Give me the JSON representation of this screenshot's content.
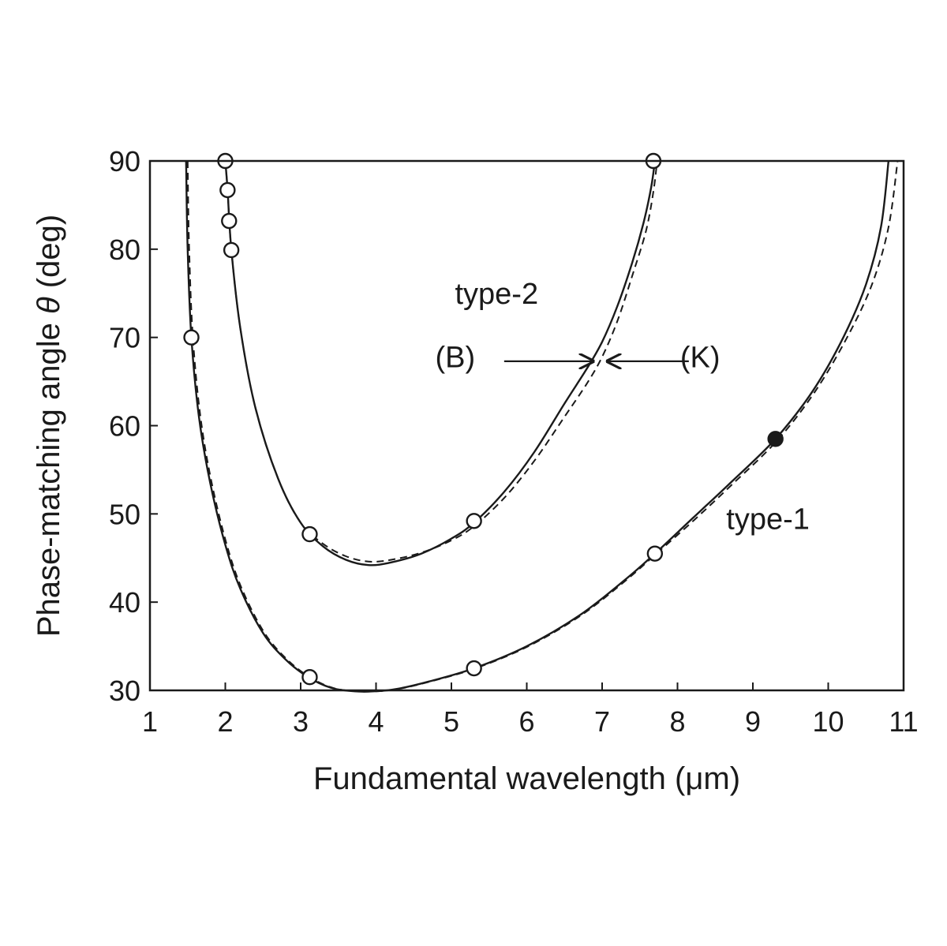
{
  "chart_data": {
    "type": "line",
    "xlabel": "Fundamental wavelength (μm)",
    "ylabel_prefix": "Phase-matching angle ",
    "ylabel_symbol": "θ",
    "ylabel_suffix": " (deg)",
    "xlim": [
      1,
      11
    ],
    "ylim": [
      30,
      90
    ],
    "xticks": [
      1,
      2,
      3,
      4,
      5,
      6,
      7,
      8,
      9,
      10,
      11
    ],
    "yticks": [
      30,
      40,
      50,
      60,
      70,
      80,
      90
    ],
    "grid": false,
    "series": [
      {
        "name": "type-1",
        "style": "solid",
        "x": [
          1.48,
          1.5,
          1.55,
          1.65,
          1.8,
          2.0,
          2.2,
          2.5,
          2.8,
          3.1,
          3.4,
          3.7,
          4.0,
          4.3,
          4.7,
          5.3,
          6.0,
          6.7,
          7.3,
          7.7,
          8.2,
          8.7,
          9.3,
          9.8,
          10.2,
          10.5,
          10.7,
          10.8
        ],
        "y": [
          90,
          80,
          70,
          61,
          53.5,
          46.5,
          41.5,
          36.5,
          33.5,
          31.5,
          30.3,
          29.9,
          29.9,
          30.2,
          31.0,
          32.5,
          35.0,
          38.5,
          42.5,
          45.5,
          49.5,
          53.5,
          58.5,
          64.0,
          70.0,
          76.0,
          82.5,
          90
        ]
      },
      {
        "name": "type-1",
        "style": "dashed",
        "x": [
          1.5,
          1.52,
          1.57,
          1.67,
          1.82,
          2.02,
          2.22,
          2.52,
          2.82,
          3.12,
          3.42,
          3.72,
          4.02,
          4.32,
          4.72,
          5.32,
          6.02,
          6.72,
          7.32,
          7.72,
          8.22,
          8.72,
          9.32,
          9.82,
          10.25,
          10.58,
          10.8,
          10.92
        ],
        "y": [
          90,
          80,
          70,
          61,
          53.5,
          46.5,
          41.5,
          36.5,
          33.5,
          31.5,
          30.3,
          29.9,
          29.9,
          30.2,
          31.0,
          32.5,
          35.0,
          38.5,
          42.5,
          45.5,
          49.3,
          53.3,
          58.3,
          63.8,
          70.0,
          76.0,
          82.5,
          90
        ]
      },
      {
        "name": "type-2",
        "style": "solid",
        "x": [
          2.0,
          2.03,
          2.08,
          2.2,
          2.4,
          2.7,
          3.0,
          3.3,
          3.6,
          3.9,
          4.2,
          4.6,
          5.0,
          5.3,
          5.7,
          6.1,
          6.5,
          6.8,
          7.0,
          7.2,
          7.4,
          7.55,
          7.65,
          7.7
        ],
        "y": [
          90,
          86.7,
          80,
          71.0,
          62.0,
          54.0,
          49.0,
          46.3,
          44.8,
          44.2,
          44.5,
          45.5,
          47.2,
          49.0,
          52.5,
          57.0,
          62.5,
          66.5,
          69.5,
          73.5,
          78.5,
          83.0,
          87.0,
          90
        ]
      },
      {
        "name": "type-2",
        "style": "dashed",
        "x": [
          2.0,
          2.03,
          2.08,
          2.2,
          2.4,
          2.7,
          3.0,
          3.3,
          3.6,
          3.9,
          4.2,
          4.6,
          5.0,
          5.3,
          5.7,
          6.1,
          6.5,
          6.8,
          7.0,
          7.2,
          7.4,
          7.58,
          7.68,
          7.73
        ],
        "y": [
          90,
          86.7,
          80,
          71.0,
          62.0,
          54.0,
          49.0,
          46.6,
          45.2,
          44.6,
          44.8,
          45.6,
          47.0,
          48.6,
          51.8,
          56.0,
          61.0,
          64.8,
          67.8,
          71.8,
          77.0,
          82.0,
          86.5,
          90
        ]
      }
    ],
    "markers": [
      {
        "x": 1.55,
        "y": 70,
        "fill": "open"
      },
      {
        "x": 3.12,
        "y": 31.5,
        "fill": "open"
      },
      {
        "x": 5.3,
        "y": 32.5,
        "fill": "open"
      },
      {
        "x": 7.7,
        "y": 45.5,
        "fill": "open"
      },
      {
        "x": 9.3,
        "y": 58.5,
        "fill": "filled"
      },
      {
        "x": 2.0,
        "y": 90,
        "fill": "open"
      },
      {
        "x": 2.03,
        "y": 86.7,
        "fill": "open"
      },
      {
        "x": 2.05,
        "y": 83.2,
        "fill": "open"
      },
      {
        "x": 2.08,
        "y": 79.9,
        "fill": "open"
      },
      {
        "x": 3.12,
        "y": 47.7,
        "fill": "open"
      },
      {
        "x": 5.3,
        "y": 49.2,
        "fill": "open"
      },
      {
        "x": 7.68,
        "y": 90,
        "fill": "open"
      }
    ],
    "annotations": [
      {
        "text": "type-2",
        "x": 5.6,
        "y": 73.8
      },
      {
        "text": "type-1",
        "x": 9.2,
        "y": 48.3
      },
      {
        "text": "(B)",
        "x": 5.05,
        "y": 66.6
      },
      {
        "text": "(K)",
        "x": 8.3,
        "y": 66.6
      }
    ],
    "arrows": [
      {
        "from": [
          5.7,
          67.3
        ],
        "to": [
          6.9,
          67.3
        ]
      },
      {
        "from": [
          8.15,
          67.3
        ],
        "to": [
          7.05,
          67.3
        ]
      }
    ]
  }
}
